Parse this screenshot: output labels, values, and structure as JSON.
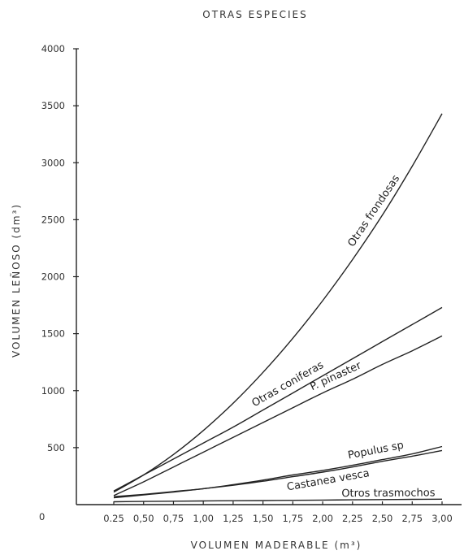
{
  "chart_data": {
    "type": "line",
    "title": "OTRAS ESPECIES",
    "xlabel": "VOLUMEN MADERABLE (m³)",
    "ylabel": "VOLUMEN LEÑOSO (dm³)",
    "xlim": [
      0,
      3.0
    ],
    "ylim": [
      0,
      4000
    ],
    "grid": false,
    "x_ticks": [
      "0.25",
      "0,50",
      "0,75",
      "1,00",
      "1,25",
      "1,50",
      "1,75",
      "2,00",
      "2,25",
      "2,50",
      "2,75",
      "3,00"
    ],
    "y_ticks": [
      "0",
      "500",
      "1000",
      "1500",
      "2000",
      "2500",
      "3000",
      "3500",
      "4000"
    ],
    "x": [
      0.25,
      0.5,
      0.75,
      1.0,
      1.25,
      1.5,
      1.75,
      2.0,
      2.25,
      2.5,
      2.75,
      3.0
    ],
    "series": [
      {
        "name": "Otras frondosas",
        "values": [
          110,
          260,
          440,
          650,
          890,
          1160,
          1460,
          1790,
          2150,
          2540,
          2970,
          3430
        ]
      },
      {
        "name": "Otras coniferas",
        "values": [
          120,
          260,
          400,
          540,
          680,
          830,
          980,
          1130,
          1280,
          1430,
          1580,
          1730
        ]
      },
      {
        "name": "P. pinaster",
        "values": [
          80,
          200,
          330,
          460,
          590,
          720,
          850,
          980,
          1100,
          1230,
          1350,
          1480
        ]
      },
      {
        "name": "Populus sp",
        "values": [
          70,
          90,
          115,
          140,
          175,
          215,
          260,
          300,
          345,
          395,
          445,
          510
        ]
      },
      {
        "name": "Castanea vesca",
        "values": [
          60,
          85,
          110,
          140,
          170,
          205,
          245,
          285,
          330,
          380,
          425,
          475
        ]
      },
      {
        "name": "Otros trasmochos",
        "values": [
          25,
          28,
          30,
          32,
          34,
          36,
          38,
          40,
          42,
          44,
          46,
          48
        ]
      }
    ]
  }
}
